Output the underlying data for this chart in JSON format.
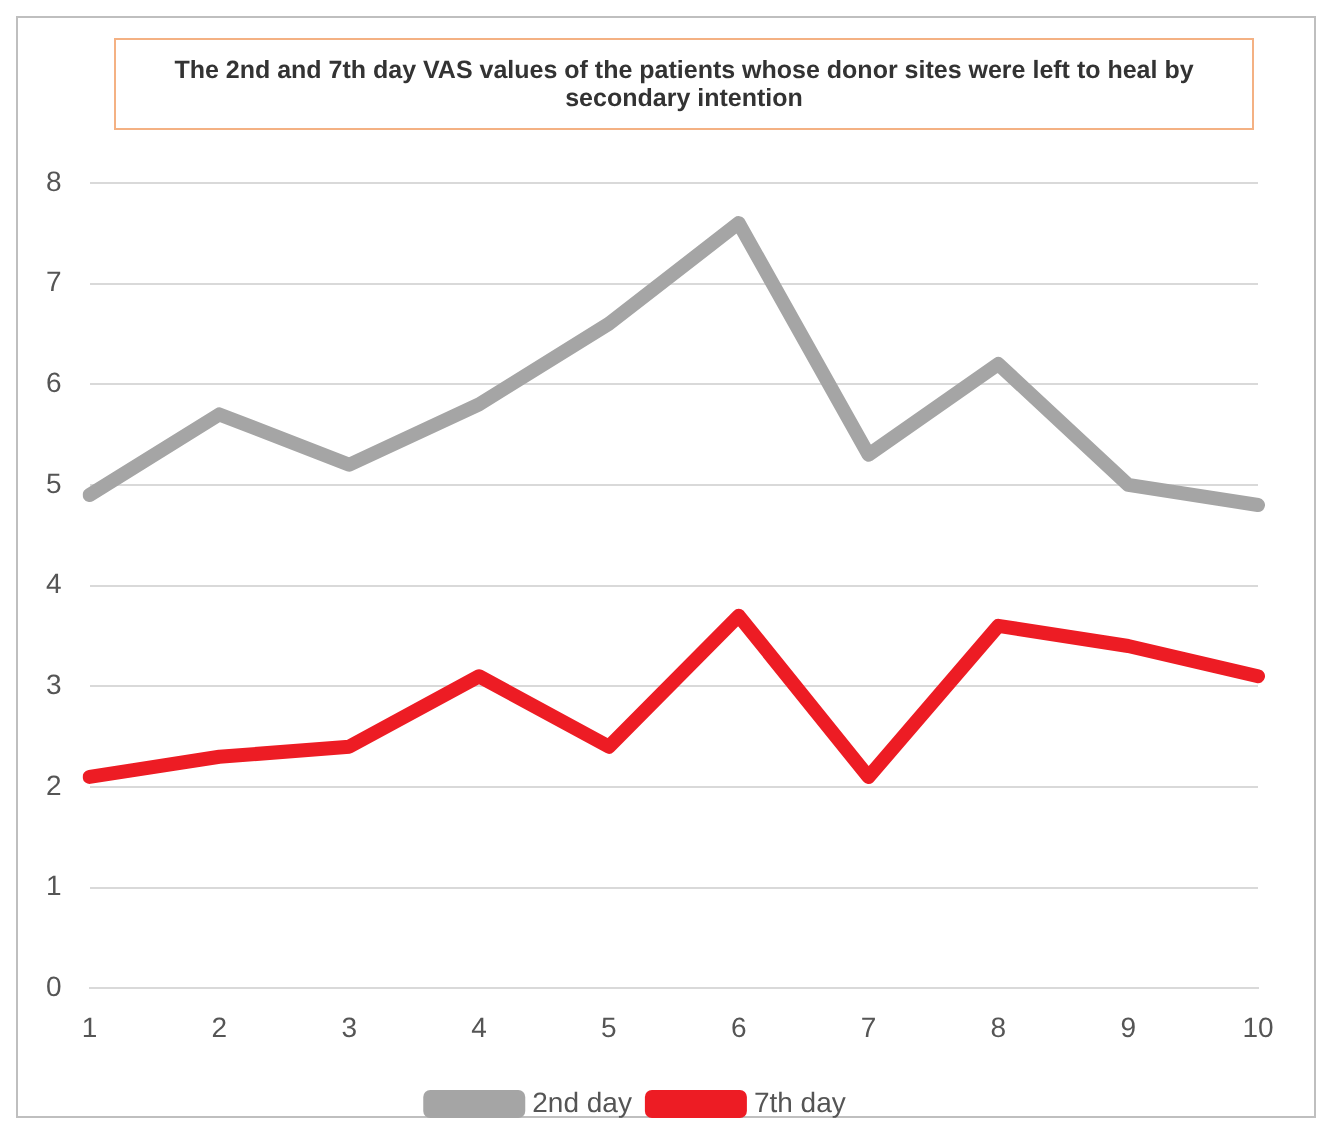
{
  "chart_data": {
    "type": "line",
    "title": "The 2nd and 7th day VAS values of the patients whose donor sites were left to heal by secondary intention",
    "categories": [
      "1",
      "2",
      "3",
      "4",
      "5",
      "6",
      "7",
      "8",
      "9",
      "10"
    ],
    "series": [
      {
        "name": "2nd day",
        "color": "#a5a5a5",
        "values": [
          4.9,
          5.7,
          5.2,
          5.8,
          6.6,
          7.6,
          5.3,
          6.2,
          5.0,
          4.8
        ]
      },
      {
        "name": "7th day",
        "color": "#ed1c24",
        "values": [
          2.1,
          2.3,
          2.4,
          3.1,
          2.4,
          3.7,
          2.1,
          3.6,
          3.4,
          3.1
        ]
      }
    ],
    "ylim": [
      0,
      8
    ],
    "yticks": [
      0,
      1,
      2,
      3,
      4,
      5,
      6,
      7,
      8
    ],
    "grid": "y",
    "legend": "bottom",
    "marker": "none",
    "line_style": "solid"
  }
}
